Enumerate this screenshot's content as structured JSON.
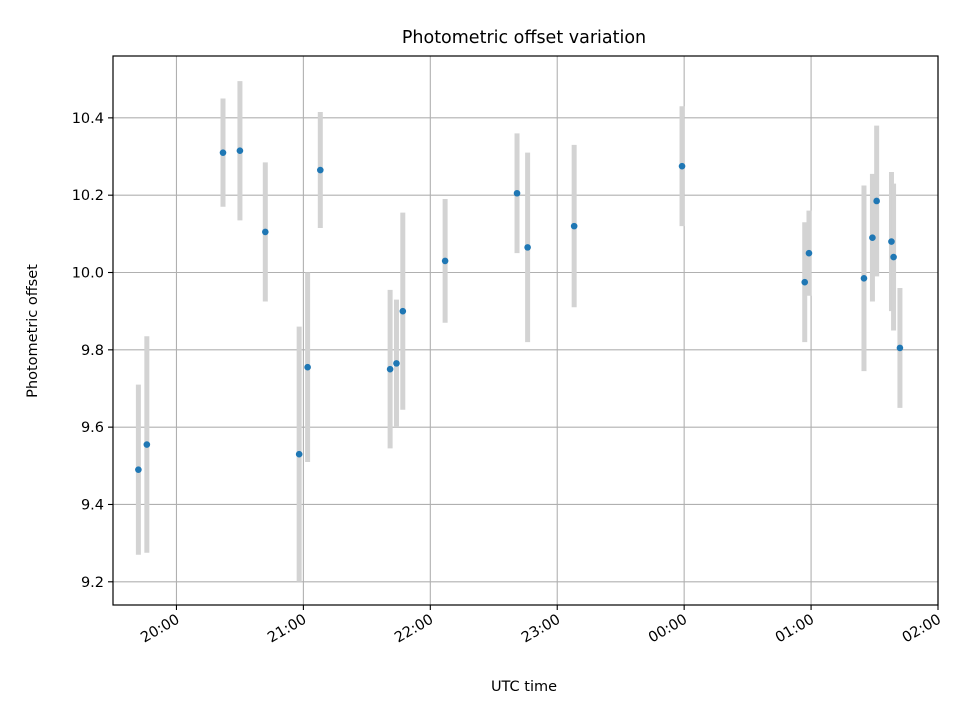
{
  "chart_data": {
    "type": "scatter",
    "title": "Photometric offset variation",
    "xlabel": "UTC time",
    "ylabel": "Photometric offset",
    "x_axis_kind": "time",
    "xlim": [
      "19:30",
      "02:00"
    ],
    "ylim": [
      9.14,
      10.56
    ],
    "x_ticks": [
      "20:00",
      "21:00",
      "22:00",
      "23:00",
      "00:00",
      "01:00",
      "02:00"
    ],
    "y_ticks": [
      "9.2",
      "9.4",
      "9.6",
      "9.8",
      "10.0",
      "10.2",
      "10.4"
    ],
    "grid": true,
    "legend": "none",
    "colors": {
      "point": "#1f77b4",
      "errorbar": "#d3d3d3",
      "grid": "#b0b0b0"
    },
    "series": [
      {
        "points": [
          {
            "t": "19:42",
            "y": 9.49,
            "err": 0.22
          },
          {
            "t": "19:46",
            "y": 9.555,
            "err": 0.28
          },
          {
            "t": "20:22",
            "y": 10.31,
            "err": 0.14
          },
          {
            "t": "20:30",
            "y": 10.315,
            "err": 0.18
          },
          {
            "t": "20:42",
            "y": 10.105,
            "err": 0.18
          },
          {
            "t": "20:58",
            "y": 9.53,
            "err": 0.33
          },
          {
            "t": "21:02",
            "y": 9.755,
            "err": 0.245
          },
          {
            "t": "21:08",
            "y": 10.265,
            "err": 0.15
          },
          {
            "t": "21:41",
            "y": 9.75,
            "err": 0.205
          },
          {
            "t": "21:44",
            "y": 9.765,
            "err": 0.165
          },
          {
            "t": "21:47",
            "y": 9.9,
            "err": 0.255
          },
          {
            "t": "22:07",
            "y": 10.03,
            "err": 0.16
          },
          {
            "t": "22:41",
            "y": 10.205,
            "err": 0.155
          },
          {
            "t": "22:46",
            "y": 10.065,
            "err": 0.245
          },
          {
            "t": "23:08",
            "y": 10.12,
            "err": 0.21
          },
          {
            "t": "23:59",
            "y": 10.275,
            "err": 0.155
          },
          {
            "t": "00:57",
            "y": 9.975,
            "err": 0.155
          },
          {
            "t": "00:59",
            "y": 10.05,
            "err": 0.11
          },
          {
            "t": "01:25",
            "y": 9.985,
            "err": 0.24
          },
          {
            "t": "01:29",
            "y": 10.09,
            "err": 0.165
          },
          {
            "t": "01:31",
            "y": 10.185,
            "err": 0.195
          },
          {
            "t": "01:38",
            "y": 10.08,
            "err": 0.18
          },
          {
            "t": "01:39",
            "y": 10.04,
            "err": 0.19
          },
          {
            "t": "01:42",
            "y": 9.805,
            "err": 0.155
          }
        ]
      }
    ]
  }
}
